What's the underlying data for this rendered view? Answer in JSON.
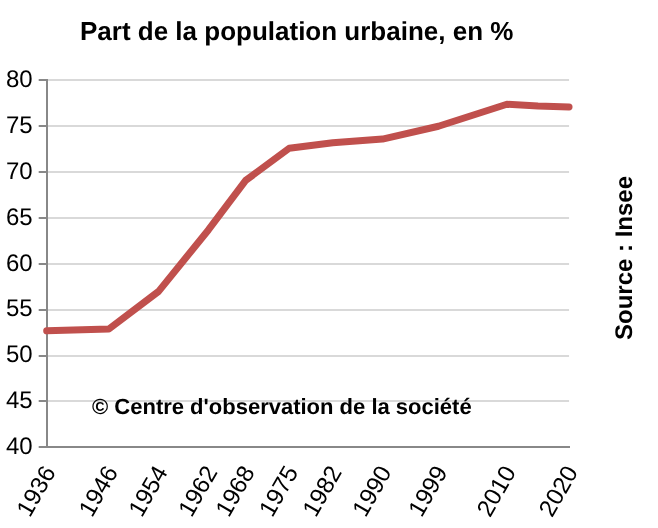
{
  "chart_data": {
    "type": "line",
    "title": "Part de la population urbaine, en %",
    "x": [
      1936,
      1946,
      1954,
      1962,
      1968,
      1975,
      1982,
      1990,
      1999,
      2010,
      2015,
      2020
    ],
    "series": [
      {
        "color": "#c0504d",
        "values": [
          52.7,
          52.9,
          57,
          63.7,
          69.1,
          72.6,
          73.2,
          73.6,
          75,
          77.4,
          77.2,
          77.1
        ]
      }
    ],
    "xlim": [
      1936,
      2020
    ],
    "xticks": [
      1936,
      1946,
      1954,
      1962,
      1968,
      1975,
      1982,
      1990,
      1999,
      2010,
      2020
    ],
    "ylim": [
      40,
      80
    ],
    "yticks": [
      40,
      45,
      50,
      55,
      60,
      65,
      70,
      75,
      80
    ],
    "grid": "y",
    "legend": false,
    "marker": "none",
    "line_style": "solid",
    "annotations": [
      "© Centre d'observation de la société",
      "Source : Insee"
    ]
  }
}
